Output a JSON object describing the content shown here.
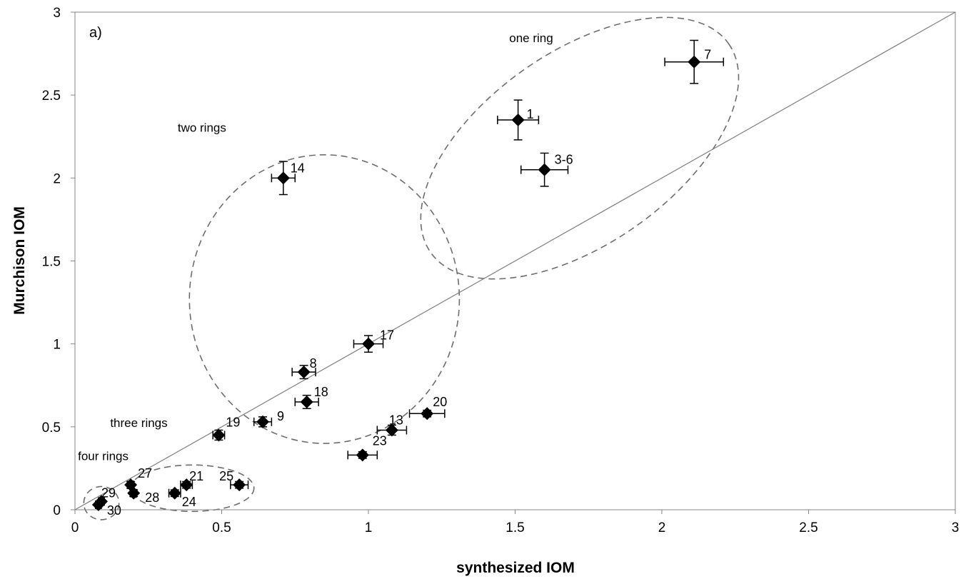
{
  "chart_data": {
    "type": "scatter",
    "panel_label": "a)",
    "title": "",
    "xlabel": "synthesized IOM",
    "ylabel": "Murchison IOM",
    "xlim": [
      0,
      3
    ],
    "ylim": [
      0,
      3
    ],
    "xticks": [
      "0",
      "0.5",
      "1",
      "1.5",
      "2",
      "2.5",
      "3"
    ],
    "yticks": [
      "0",
      "0.5",
      "1",
      "1.5",
      "2",
      "2.5",
      "3"
    ],
    "grid": false,
    "reference_line": {
      "from": [
        0,
        0
      ],
      "to": [
        3,
        3
      ]
    },
    "points": [
      {
        "label": "7",
        "x": 2.11,
        "y": 2.7,
        "xerr": 0.1,
        "yerr": 0.13
      },
      {
        "label": "1",
        "x": 1.51,
        "y": 2.35,
        "xerr": 0.07,
        "yerr": 0.12
      },
      {
        "label": "3-6",
        "x": 1.6,
        "y": 2.05,
        "xerr": 0.08,
        "yerr": 0.1
      },
      {
        "label": "14",
        "x": 0.71,
        "y": 2.0,
        "xerr": 0.04,
        "yerr": 0.1
      },
      {
        "label": "17",
        "x": 1.0,
        "y": 1.0,
        "xerr": 0.05,
        "yerr": 0.05
      },
      {
        "label": "8",
        "x": 0.78,
        "y": 0.83,
        "xerr": 0.04,
        "yerr": 0.04
      },
      {
        "label": "18",
        "x": 0.79,
        "y": 0.65,
        "xerr": 0.04,
        "yerr": 0.04
      },
      {
        "label": "20",
        "x": 1.2,
        "y": 0.58,
        "xerr": 0.06,
        "yerr": 0.02
      },
      {
        "label": "9",
        "x": 0.64,
        "y": 0.53,
        "xerr": 0.03,
        "yerr": 0.03
      },
      {
        "label": "13",
        "x": 1.08,
        "y": 0.48,
        "xerr": 0.05,
        "yerr": 0.03
      },
      {
        "label": "19",
        "x": 0.49,
        "y": 0.45,
        "xerr": 0.02,
        "yerr": 0.03
      },
      {
        "label": "23",
        "x": 0.98,
        "y": 0.33,
        "xerr": 0.05,
        "yerr": 0.02
      },
      {
        "label": "25",
        "x": 0.56,
        "y": 0.15,
        "xerr": 0.03,
        "yerr": 0.02
      },
      {
        "label": "21",
        "x": 0.38,
        "y": 0.15,
        "xerr": 0.02,
        "yerr": 0.02
      },
      {
        "label": "24",
        "x": 0.34,
        "y": 0.1,
        "xerr": 0.02,
        "yerr": 0.02
      },
      {
        "label": "27",
        "x": 0.19,
        "y": 0.15,
        "xerr": 0.01,
        "yerr": 0.02
      },
      {
        "label": "28",
        "x": 0.2,
        "y": 0.1,
        "xerr": 0.01,
        "yerr": 0.02
      },
      {
        "label": "29",
        "x": 0.09,
        "y": 0.05,
        "xerr": 0.01,
        "yerr": 0.01
      },
      {
        "label": "30",
        "x": 0.08,
        "y": 0.03,
        "xerr": 0.01,
        "yerr": 0.01
      }
    ],
    "groups": [
      {
        "name": "one ring",
        "cx": 1.72,
        "cy": 2.18,
        "rx": 0.62,
        "ry": 0.58,
        "rotate_deg": -35
      },
      {
        "name": "two rings",
        "cx": 0.85,
        "cy": 1.27,
        "rx": 0.46,
        "ry": 0.87,
        "rotate_deg": 0
      },
      {
        "name": "three rings",
        "cx": 0.4,
        "cy": 0.13,
        "rx": 0.21,
        "ry": 0.14,
        "rotate_deg": 0
      },
      {
        "name": "four rings",
        "cx": 0.09,
        "cy": 0.04,
        "rx": 0.06,
        "ry": 0.1,
        "rotate_deg": 0
      }
    ]
  }
}
